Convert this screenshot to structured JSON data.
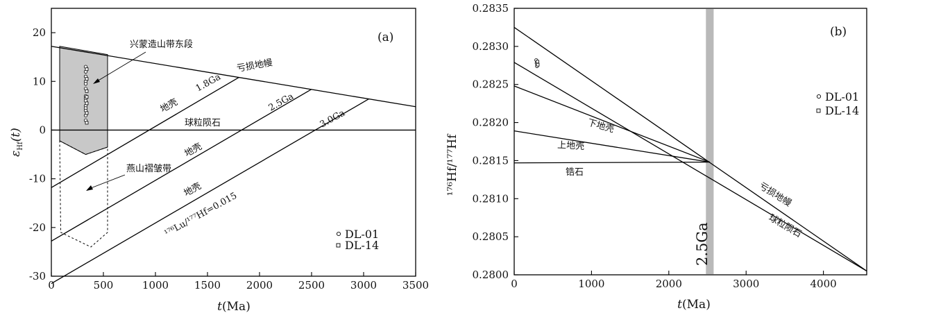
{
  "chart_data": [
    {
      "type": "line",
      "panel_label": "(a)",
      "xlabel": {
        "italic": "t",
        "rest": "(Ma)"
      },
      "ylabel": {
        "italic": "ε",
        "sub": "Hf",
        "tail": "(t)"
      },
      "xlim": [
        0,
        3500
      ],
      "ylim": [
        -30,
        25
      ],
      "xticks": [
        0,
        500,
        1000,
        1500,
        2000,
        2500,
        3000,
        3500
      ],
      "yticks": [
        -30,
        -20,
        -10,
        0,
        10,
        20
      ],
      "grid": false,
      "legend_position": "bottom-right",
      "legend": [
        "DL-01",
        "DL-14"
      ],
      "lines": [
        {
          "name": "亏损地幔",
          "x": [
            0,
            3500
          ],
          "y": [
            17.2,
            4.8
          ]
        },
        {
          "name": "球粒陨石",
          "x": [
            0,
            3500
          ],
          "y": [
            0,
            0
          ]
        },
        {
          "name": "1.8Ga 地壳",
          "x": [
            0,
            1800
          ],
          "y": [
            -11.8,
            10.8
          ]
        },
        {
          "name": "2.5Ga 地壳",
          "x": [
            0,
            2500
          ],
          "y": [
            -22.8,
            8.4
          ]
        },
        {
          "name": "3.0Ga",
          "x": [
            0,
            3050
          ],
          "y": [
            -31.5,
            6.4
          ]
        }
      ],
      "regions": [
        {
          "name": "兴蒙造山带东段",
          "shaded": true,
          "vertices": [
            [
              80,
              17.2
            ],
            [
              540,
              15.5
            ],
            [
              540,
              -3.5
            ],
            [
              330,
              -5
            ],
            [
              80,
              -2.2
            ]
          ]
        },
        {
          "name": "燕山褶皱带",
          "shaded": false,
          "vertices": [
            [
              80,
              -2.2
            ],
            [
              330,
              -5
            ],
            [
              540,
              -3.5
            ],
            [
              540,
              -21
            ],
            [
              380,
              -24
            ],
            [
              90,
              -21
            ]
          ]
        }
      ],
      "samples": {
        "DL-01": {
          "x": [
            330,
            330,
            330,
            330,
            330,
            330,
            330,
            330,
            330,
            330,
            330,
            330,
            330,
            330
          ],
          "y": [
            13,
            12,
            11,
            10,
            9.5,
            8.5,
            7,
            6.5,
            6,
            5,
            4.5,
            4,
            3,
            2
          ]
        },
        "DL-14": {
          "x": [
            340,
            340,
            340,
            340,
            340,
            340,
            340
          ],
          "y": [
            12.5,
            10.5,
            8,
            6.8,
            5.5,
            3.5,
            1.5
          ]
        }
      },
      "annotations": {
        "dm": "亏损地幔",
        "chur": "球粒陨石",
        "crust1": "地壳",
        "ga18": "1.8Ga",
        "crust2": "地壳",
        "ga25": "2.5Ga",
        "crust3": "地壳",
        "ga30": "3.0Ga",
        "lu_ratio": "¹⁷⁶Lu/¹⁷⁷Hf=0.015",
        "xingmeng": "兴蒙造山带东段",
        "yanshan": "燕山褶皱带"
      }
    },
    {
      "type": "line",
      "panel_label": "(b)",
      "xlabel": {
        "italic": "t",
        "rest": "(Ma)"
      },
      "ylabel": "¹⁷⁶Hf/¹⁷⁷Hf",
      "xlim": [
        0,
        4560
      ],
      "ylim": [
        0.28,
        0.2835
      ],
      "xticks": [
        0,
        1000,
        2000,
        3000,
        4000
      ],
      "yticks": [
        0.28,
        0.2805,
        0.281,
        0.2815,
        0.282,
        0.2825,
        0.283,
        0.2835
      ],
      "ytick_labels": [
        "0.2800",
        "0.2805",
        "0.2810",
        "0.2815",
        "0.2820",
        "0.2825",
        "0.2830",
        "0.2835"
      ],
      "grid": false,
      "legend_position": "top-right",
      "legend": [
        "DL-01",
        "DL-14"
      ],
      "vband": {
        "x": [
          2480,
          2580
        ],
        "label": "2.5Ga"
      },
      "lines": [
        {
          "name": "亏损地幔",
          "x": [
            0,
            4560
          ],
          "y": [
            0.28325,
            0.28005
          ]
        },
        {
          "name": "球粒陨石",
          "x": [
            0,
            4560
          ],
          "y": [
            0.28279,
            0.28005
          ]
        },
        {
          "name": "下地壳",
          "x": [
            0,
            2530
          ],
          "y": [
            0.28248,
            0.28148
          ]
        },
        {
          "name": "上地壳",
          "x": [
            0,
            2530
          ],
          "y": [
            0.28189,
            0.28148
          ]
        },
        {
          "name": "锆石",
          "x": [
            0,
            2530
          ],
          "y": [
            0.28147,
            0.28148
          ]
        }
      ],
      "samples": {
        "DL-01": {
          "x": [
            285,
            290,
            295
          ],
          "y": [
            0.28282,
            0.28278,
            0.28274
          ]
        },
        "DL-14": {
          "x": [
            300,
            305
          ],
          "y": [
            0.2828,
            0.28276
          ]
        }
      },
      "annotations": {
        "dm": "亏损地幔",
        "chur": "球粒陨石",
        "lower": "下地壳",
        "upper": "上地壳",
        "zircon": "锆石"
      }
    }
  ]
}
